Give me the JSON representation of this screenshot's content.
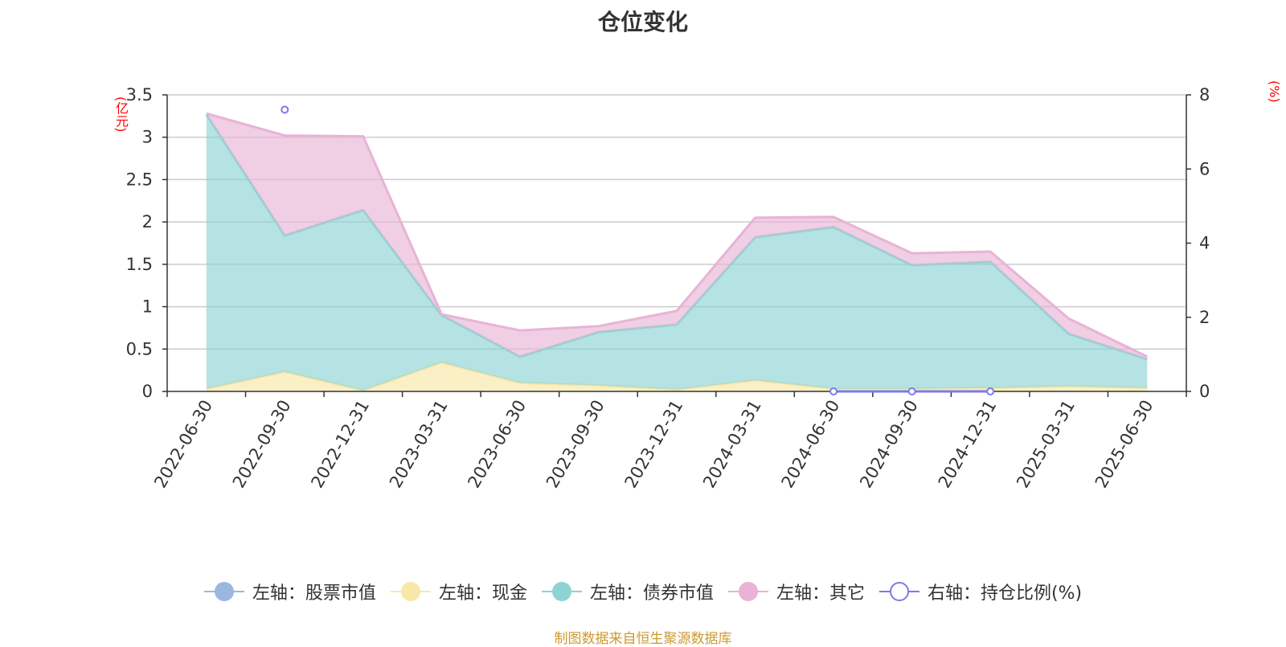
{
  "chart_data": {
    "type": "area",
    "title": "仓位变化",
    "unit_left": "(亿元)",
    "unit_right": "(%)",
    "x": [
      "2022-06-30",
      "2022-09-30",
      "2022-12-31",
      "2023-03-31",
      "2023-06-30",
      "2023-09-30",
      "2023-12-31",
      "2024-03-31",
      "2024-06-30",
      "2024-09-30",
      "2024-12-31",
      "2025-03-31",
      "2025-06-30"
    ],
    "y_left_ticks": [
      "0",
      "0.5",
      "1",
      "1.5",
      "2",
      "2.5",
      "3",
      "3.5"
    ],
    "y_left_range": [
      0,
      3.5
    ],
    "y_right_ticks": [
      "0",
      "2",
      "4",
      "6",
      "8"
    ],
    "y_right_range": [
      0,
      8
    ],
    "grid": true,
    "legend_position": "bottom",
    "series": [
      {
        "name": "左轴：股票市值",
        "axis": "left",
        "color": "#9bb7e0",
        "values": [
          0,
          0,
          0,
          0,
          0,
          0,
          0,
          0,
          0,
          0,
          0,
          0,
          0
        ]
      },
      {
        "name": "左轴：现金",
        "axis": "left",
        "color": "#f9e7a8",
        "values": [
          0.03,
          0.23,
          0.01,
          0.34,
          0.1,
          0.07,
          0.02,
          0.13,
          0.03,
          0.03,
          0.04,
          0.06,
          0.04
        ]
      },
      {
        "name": "左轴：债券市值",
        "axis": "left",
        "color": "#8dd3d3",
        "values": [
          3.24,
          1.61,
          2.13,
          0.56,
          0.31,
          0.63,
          0.77,
          1.69,
          1.91,
          1.46,
          1.49,
          0.62,
          0.34
        ]
      },
      {
        "name": "左轴：其它",
        "axis": "left",
        "color": "#e8b3d6",
        "values": [
          0.01,
          1.18,
          0.87,
          0.01,
          0.31,
          0.07,
          0.16,
          0.23,
          0.12,
          0.14,
          0.12,
          0.18,
          0.03
        ]
      },
      {
        "name": "右轴：持仓比例(%)",
        "axis": "right",
        "color": "#7b7bea",
        "values": [
          null,
          7.6,
          null,
          null,
          null,
          null,
          null,
          null,
          0,
          0,
          0,
          null,
          null
        ]
      }
    ],
    "source": "制图数据来自恒生聚源数据库"
  }
}
